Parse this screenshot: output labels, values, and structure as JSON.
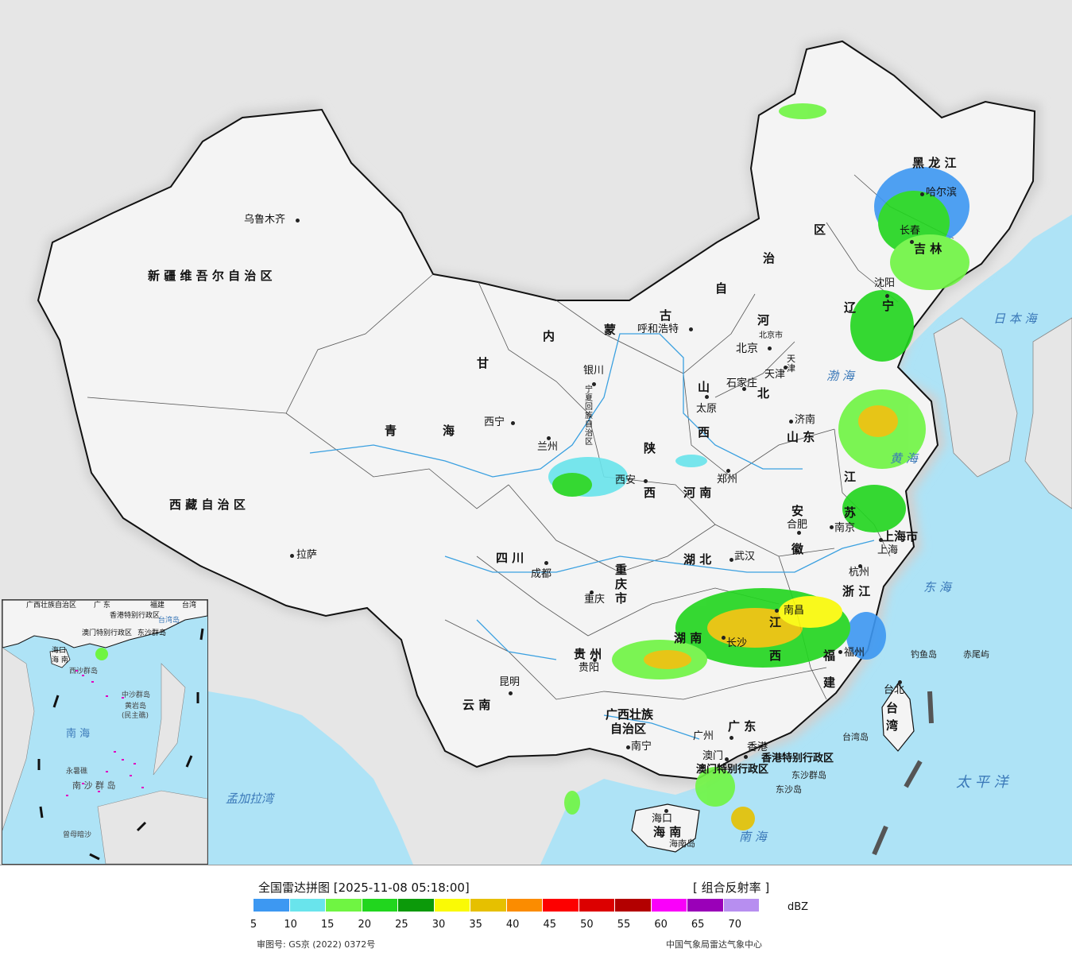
{
  "title": "全国雷达拼图 [2025-11-08 05:18:00]",
  "product": "[ 组合反射率 ]",
  "unit": "dBZ",
  "legend_colors": [
    "#3d98f2",
    "#69e4ec",
    "#6ff542",
    "#21d61e",
    "#0c9a0a",
    "#fafa05",
    "#e6c000",
    "#fb8c00",
    "#fd0000",
    "#dc0000",
    "#b30000",
    "#fa00fa",
    "#9a00b8",
    "#b78ef0"
  ],
  "legend_ticks": [
    "5",
    "10",
    "15",
    "20",
    "25",
    "30",
    "35",
    "40",
    "45",
    "50",
    "55",
    "60",
    "65",
    "70"
  ],
  "approval": "审图号: GS京 (2022) 0372号",
  "agency": "中国气象局雷达气象中心",
  "provinces": {
    "xinjiang": "新 疆 维 吾 尔 自 治 区",
    "xizang": "西 藏 自 治 区",
    "qinghai_1": "青",
    "qinghai_2": "海",
    "gansu": "甘",
    "neimenggu_1": "内",
    "neimenggu_2": "蒙",
    "neimenggu_3": "古",
    "neimenggu_4": "自",
    "neimenggu_5": "治",
    "neimenggu_6": "区",
    "heilongjiang": "黑 龙 江",
    "jilin": "吉 林",
    "liaoning_1": "辽",
    "liaoning_2": "宁",
    "hebei_1": "河",
    "hebei_2": "北",
    "shanxi_1": "山",
    "shanxi_2": "西",
    "shandong": "山 东",
    "henan": "河 南",
    "shaanxi_1": "陕",
    "shaanxi_2": "西",
    "sichuan": "四 川",
    "hubei": "湖 北",
    "anhui_1": "安",
    "anhui_2": "徽",
    "jiangsu_1": "江",
    "jiangsu_2": "苏",
    "zhejiang": "浙 江",
    "jiangxi_1": "江",
    "jiangxi_2": "西",
    "hunan": "湖 南",
    "guizhou": "贵 州",
    "yunnan": "云 南",
    "guangxi_1": "广西壮族",
    "guangxi_2": "自治区",
    "guangdong": "广 东",
    "fujian_1": "福",
    "fujian_2": "建",
    "hainan": "海 南",
    "taiwan": "台 湾",
    "ningxia": "宁夏回族自治区",
    "chongqing": "重庆市",
    "tianjin": "天津",
    "shanghai": "上海市",
    "beijing": "北京市",
    "hk": "香港特别行政区",
    "macau": "澳门特别行政区"
  },
  "cities": {
    "urumqi": "乌鲁木齐",
    "lhasa": "拉萨",
    "xining": "西宁",
    "lanzhou": "兰州",
    "yinchuan": "银川",
    "hohhot": "呼和浩特",
    "beijing": "北京",
    "tianjin": "天津",
    "shijiazhuang": "石家庄",
    "taiyuan": "太原",
    "jinan": "济南",
    "zhengzhou": "郑州",
    "xian": "西安",
    "chengdu": "成都",
    "chongqing": "重庆",
    "wuhan": "武汉",
    "hefei": "合肥",
    "nanjing": "南京",
    "shanghai": "上海",
    "hangzhou": "杭州",
    "nanchang": "南昌",
    "changsha": "长沙",
    "fuzhou": "福州",
    "guiyang": "贵阳",
    "kunming": "昆明",
    "nanning": "南宁",
    "guangzhou": "广州",
    "hongkong": "香港",
    "macau": "澳门",
    "haikou": "海口",
    "taipei": "台北",
    "harbin": "哈尔滨",
    "changchun": "长春",
    "shenyang": "沈阳"
  },
  "seas": {
    "japan_sea": "日 本 海",
    "bohai": "渤 海",
    "yellow_sea": "黄 海",
    "east_sea": "东 海",
    "pacific": "太 平 洋",
    "south_sea": "南 海",
    "bengal": "孟加拉湾"
  },
  "islands": {
    "diaoyu": "钓鱼岛",
    "chiwei": "赤尾屿",
    "dongsha_islands": "东沙群岛",
    "dongsha": "东沙岛",
    "hainan_island": "海南岛",
    "taiwan_island": "台湾岛"
  },
  "inset": {
    "guangxi": "广西壮族自治区",
    "guangdong": "广 东",
    "fujian": "福建",
    "taiwan": "台湾",
    "haikou": "海口",
    "hainan": "海 南",
    "hk": "香港特别行政区",
    "macau": "澳门特别行政区",
    "dongsha": "东沙群岛",
    "xisha": "西沙群岛",
    "zhongsha": "中沙群岛",
    "huangyan": "黄岩岛",
    "minzhu": "(民主礁)",
    "south_sea": "南 海",
    "nansha": "南 沙 群 岛",
    "yongshu": "永暑礁",
    "zengmu": "曾母暗沙",
    "taiwan_dao": "台湾岛"
  }
}
